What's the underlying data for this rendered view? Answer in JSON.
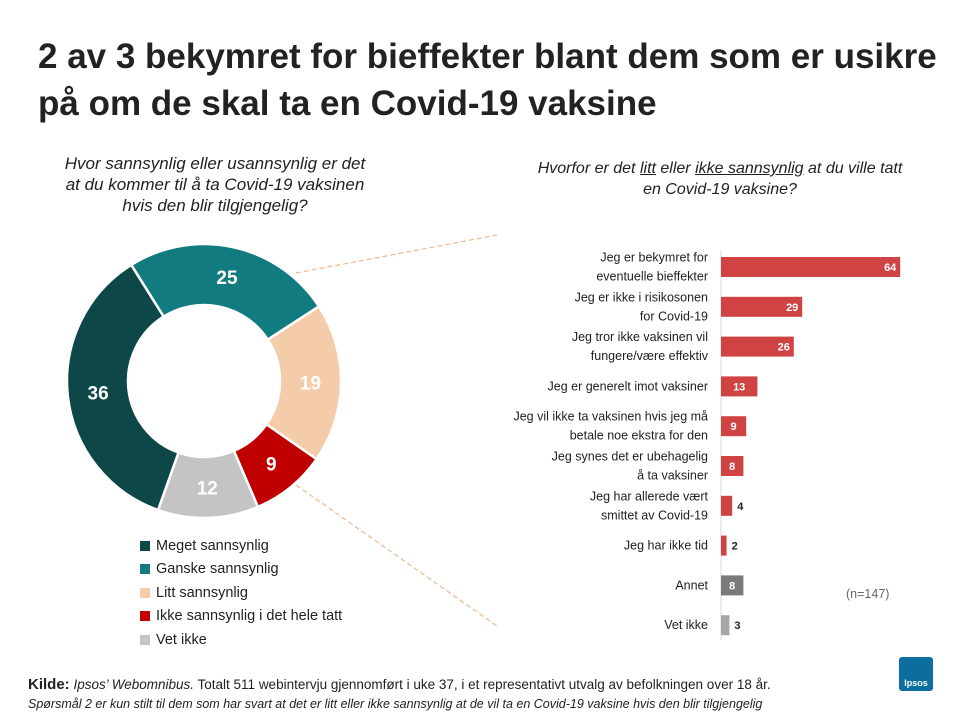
{
  "title": "2 av 3 bekymret for bieffekter blant dem som er usikre på om de skal ta en Covid-19 vaksine",
  "left_question": "Hvor sannsynlig eller usannsynlig er det at du kommer til å ta Covid-19 vaksinen hvis den blir tilgjengelig?",
  "right_question": {
    "part1": "Hvorfor er det ",
    "u1": "litt",
    "part2": " eller ",
    "u2": "ikke sannsynlig",
    "part3": " at du ville tatt en Covid-19 vaksine?"
  },
  "sample_note": "(n=147)",
  "footer": {
    "kilde_label": "Kilde:",
    "source": "Ipsos’ Webomnibus.",
    "text": " Totalt 511 webintervju gjennomført i uke 37, i et representativt utvalg av befolkningen over 18 år.",
    "note": "Spørsmål 2 er kun stilt til dem som har svart at det er litt eller ikke sannsynlig at de vil ta en Covid-19 vaksine hvis den blir tilgjengelig"
  },
  "logo_text": "Ipsos",
  "chart_data": [
    {
      "type": "pie",
      "variant": "donut",
      "labels": [
        "Meget sannsynlig",
        "Ganske sannsynlig",
        "Litt sannsynlig",
        "Ikke sannsynlig i det hele tatt",
        "Vet ikke"
      ],
      "values": [
        36,
        25,
        19,
        9,
        12
      ],
      "colors": [
        "#0d4747",
        "#127b80",
        "#f5ccaa",
        "#c00000",
        "#c4c4c4"
      ],
      "legend_position": "bottom"
    },
    {
      "type": "bar",
      "orientation": "horizontal",
      "categories": [
        "Jeg er bekymret for\neventuelle bieffekter",
        "Jeg er ikke i risikosonen\nfor Covid-19",
        "Jeg tror ikke vaksinen vil\nfungere/være effektiv",
        "Jeg er generelt imot vaksiner",
        "Jeg vil ikke ta vaksinen hvis jeg må\nbetale noe ekstra for den",
        "Jeg synes det er ubehagelig\nå ta vaksiner",
        "Jeg har allerede vært\nsmittet av Covid-19",
        "Jeg har ikke tid",
        "Annet",
        "Vet ikke"
      ],
      "values": [
        64,
        29,
        26,
        13,
        9,
        8,
        4,
        2,
        8,
        3
      ],
      "colors": [
        "#d04343",
        "#d04343",
        "#d04343",
        "#d04343",
        "#d04343",
        "#d04343",
        "#d04343",
        "#d04343",
        "#7a7a7a",
        "#a6a6a6"
      ]
    }
  ]
}
